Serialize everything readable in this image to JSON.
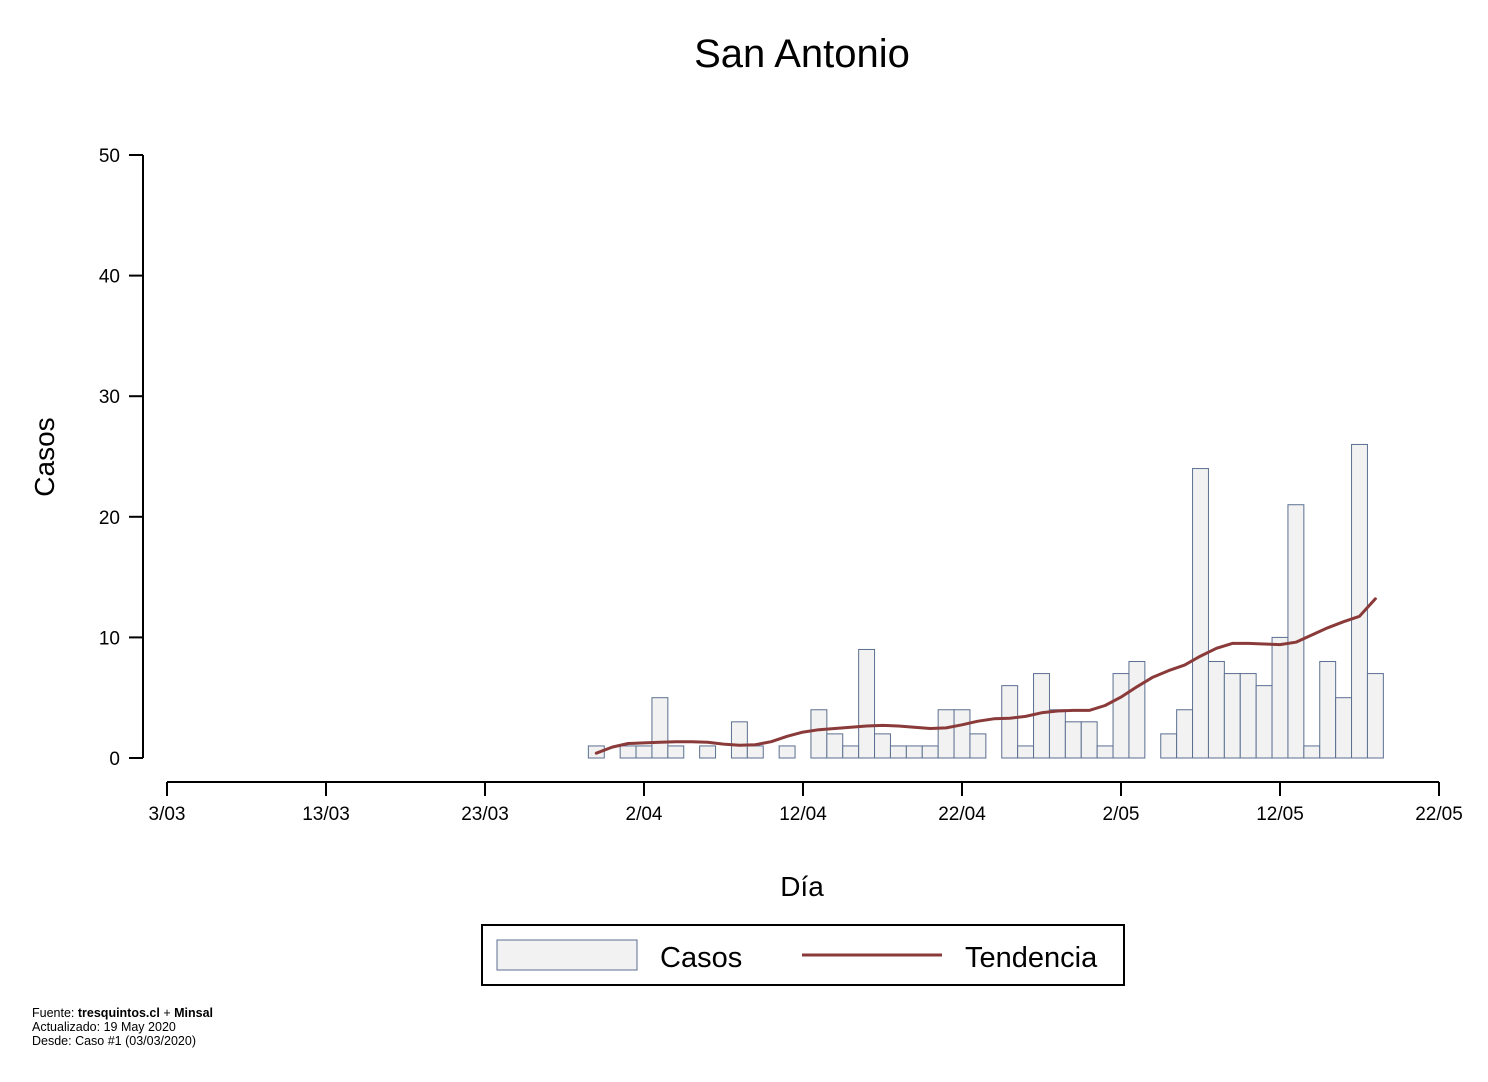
{
  "chart_data": {
    "type": "bar",
    "title": "San Antonio",
    "xlabel": "Día",
    "ylabel": "Casos",
    "ylim": [
      0,
      50
    ],
    "yticks": [
      0,
      10,
      20,
      30,
      40,
      50
    ],
    "xlim": [
      "2020-03-03",
      "2020-05-22"
    ],
    "xticks": [
      {
        "date": "2020-03-03",
        "label": "3/03"
      },
      {
        "date": "2020-03-13",
        "label": "13/03"
      },
      {
        "date": "2020-03-23",
        "label": "23/03"
      },
      {
        "date": "2020-04-02",
        "label": "2/04"
      },
      {
        "date": "2020-04-12",
        "label": "12/04"
      },
      {
        "date": "2020-04-22",
        "label": "22/04"
      },
      {
        "date": "2020-05-02",
        "label": "2/05"
      },
      {
        "date": "2020-05-12",
        "label": "12/05"
      },
      {
        "date": "2020-05-22",
        "label": "22/05"
      }
    ],
    "grid": false,
    "legend_position": "bottom",
    "colors": {
      "bar_fill": "#f2f2f2",
      "bar_stroke": "#5b6f91",
      "trend": "#8b3a3a"
    },
    "series": [
      {
        "name": "Casos",
        "kind": "bar",
        "x": [
          "2020-03-30",
          "2020-03-31",
          "2020-04-01",
          "2020-04-02",
          "2020-04-03",
          "2020-04-04",
          "2020-04-05",
          "2020-04-06",
          "2020-04-07",
          "2020-04-08",
          "2020-04-09",
          "2020-04-10",
          "2020-04-11",
          "2020-04-12",
          "2020-04-13",
          "2020-04-14",
          "2020-04-15",
          "2020-04-16",
          "2020-04-17",
          "2020-04-18",
          "2020-04-19",
          "2020-04-20",
          "2020-04-21",
          "2020-04-22",
          "2020-04-23",
          "2020-04-24",
          "2020-04-25",
          "2020-04-26",
          "2020-04-27",
          "2020-04-28",
          "2020-04-29",
          "2020-04-30",
          "2020-05-01",
          "2020-05-02",
          "2020-05-03",
          "2020-05-04",
          "2020-05-05",
          "2020-05-06",
          "2020-05-07",
          "2020-05-08",
          "2020-05-09",
          "2020-05-10",
          "2020-05-11",
          "2020-05-12",
          "2020-05-13",
          "2020-05-14",
          "2020-05-15",
          "2020-05-16",
          "2020-05-17",
          "2020-05-18"
        ],
        "values": [
          1,
          0,
          1,
          1,
          5,
          1,
          0,
          1,
          0,
          3,
          1,
          0,
          1,
          0,
          4,
          2,
          1,
          9,
          2,
          1,
          1,
          1,
          4,
          4,
          2,
          0,
          6,
          1,
          7,
          4,
          3,
          3,
          1,
          7,
          8,
          0,
          2,
          4,
          24,
          8,
          7,
          7,
          6,
          10,
          21,
          1,
          8,
          5,
          26,
          7
        ]
      },
      {
        "name": "Tendencia",
        "kind": "line",
        "x": [
          "2020-03-30",
          "2020-03-31",
          "2020-04-01",
          "2020-04-02",
          "2020-04-03",
          "2020-04-04",
          "2020-04-05",
          "2020-04-06",
          "2020-04-07",
          "2020-04-08",
          "2020-04-09",
          "2020-04-10",
          "2020-04-11",
          "2020-04-12",
          "2020-04-13",
          "2020-04-14",
          "2020-04-15",
          "2020-04-16",
          "2020-04-17",
          "2020-04-18",
          "2020-04-19",
          "2020-04-20",
          "2020-04-21",
          "2020-04-22",
          "2020-04-23",
          "2020-04-24",
          "2020-04-25",
          "2020-04-26",
          "2020-04-27",
          "2020-04-28",
          "2020-04-29",
          "2020-04-30",
          "2020-05-01",
          "2020-05-02",
          "2020-05-03",
          "2020-05-04",
          "2020-05-05",
          "2020-05-06",
          "2020-05-07",
          "2020-05-08",
          "2020-05-09",
          "2020-05-10",
          "2020-05-11",
          "2020-05-12",
          "2020-05-13",
          "2020-05-14",
          "2020-05-15",
          "2020-05-16",
          "2020-05-17",
          "2020-05-18"
        ],
        "values": [
          0.4,
          0.9,
          1.2,
          1.25,
          1.3,
          1.35,
          1.35,
          1.3,
          1.15,
          1.05,
          1.1,
          1.35,
          1.8,
          2.15,
          2.35,
          2.45,
          2.55,
          2.65,
          2.7,
          2.65,
          2.55,
          2.45,
          2.5,
          2.75,
          3.05,
          3.25,
          3.3,
          3.45,
          3.75,
          3.9,
          3.95,
          3.95,
          4.35,
          5.05,
          5.9,
          6.7,
          7.25,
          7.7,
          8.45,
          9.1,
          9.5,
          9.5,
          9.45,
          9.4,
          9.6,
          10.2,
          10.8,
          11.3,
          11.75,
          13.2
        ]
      }
    ],
    "footer": {
      "source_prefix": "Fuente: ",
      "source_site": "tresquintos.cl",
      "source_sep": " + ",
      "source_org": "Minsal",
      "updated": "Actualizado: 19 May 2020",
      "since": "Desde: Caso #1  (03/03/2020)"
    }
  }
}
